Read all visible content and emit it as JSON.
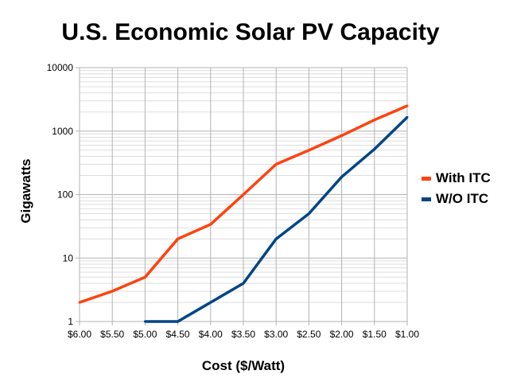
{
  "chart_data": {
    "type": "line",
    "title": "U.S. Economic Solar PV Capacity",
    "xlabel": "Cost ($/Watt)",
    "ylabel": "Gigawatts",
    "categories": [
      "$6.00",
      "$5.50",
      "$5.00",
      "$4.50",
      "$4.00",
      "$3.50",
      "$3.00",
      "$2.50",
      "$2.00",
      "$1.50",
      "$1.00"
    ],
    "yscale": "log",
    "ylim": [
      1,
      10000
    ],
    "yticks": [
      "1",
      "10",
      "100",
      "1000",
      "10000"
    ],
    "grid": true,
    "legend_position": "right",
    "series": [
      {
        "name": "With ITC",
        "color": "#ff420e",
        "values": [
          2,
          3,
          5,
          20,
          34,
          100,
          300,
          500,
          850,
          1500,
          2500
        ]
      },
      {
        "name": "W/O ITC",
        "color": "#004586",
        "values": [
          null,
          null,
          1,
          1,
          2,
          4,
          20,
          50,
          190,
          520,
          1650
        ]
      }
    ]
  }
}
